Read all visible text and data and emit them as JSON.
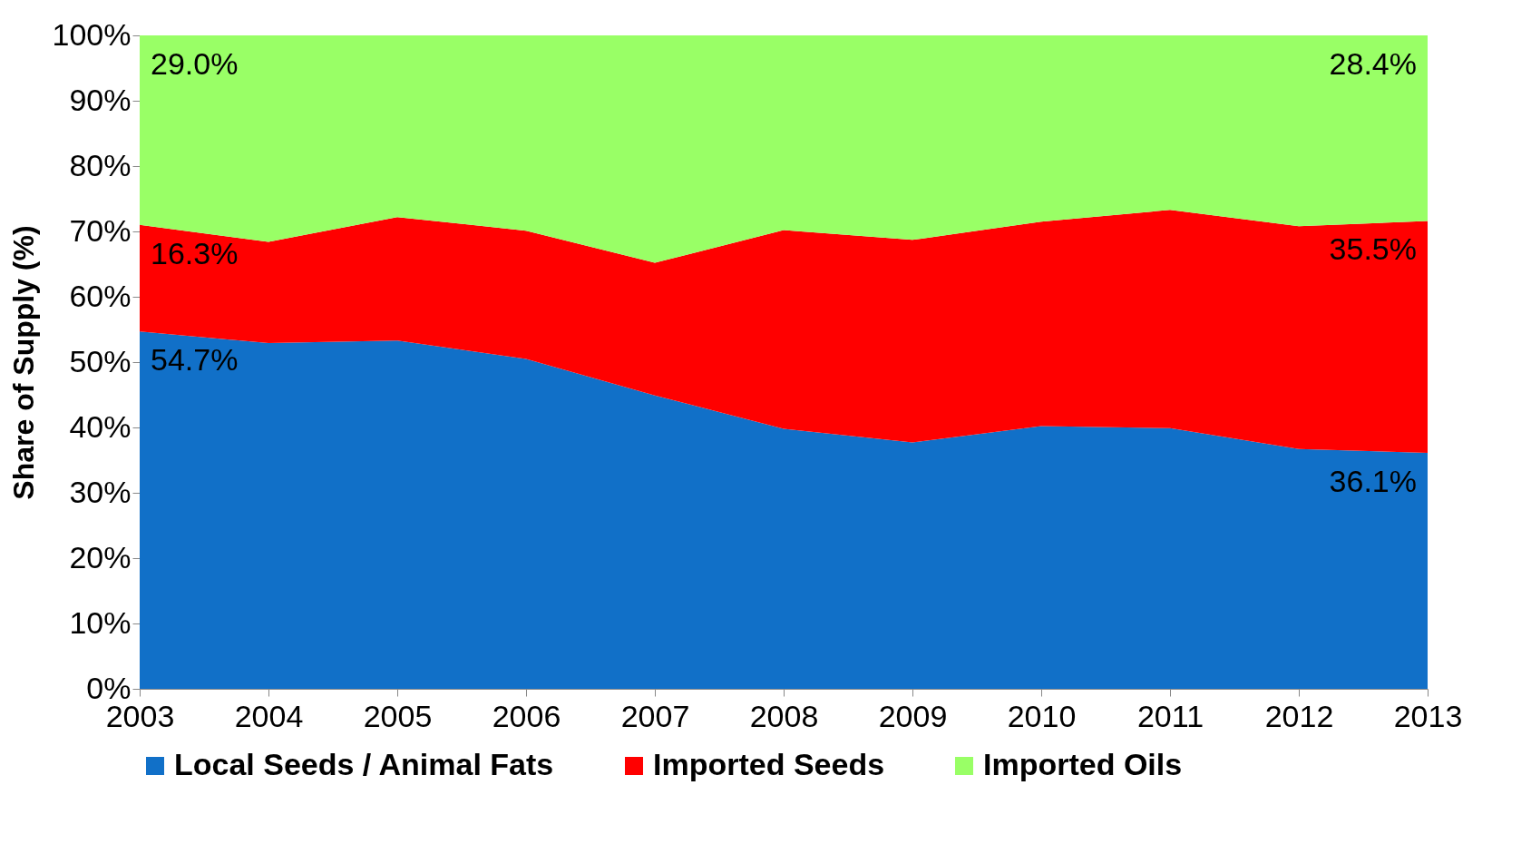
{
  "chart_data": {
    "type": "area",
    "stacked": true,
    "ylabel": "Share of Supply (%)",
    "x": [
      2003,
      2004,
      2005,
      2006,
      2007,
      2008,
      2009,
      2010,
      2011,
      2012,
      2013
    ],
    "xlim": [
      2003,
      2013
    ],
    "xticks": [
      2003,
      2004,
      2005,
      2006,
      2007,
      2008,
      2009,
      2010,
      2011,
      2012,
      2013
    ],
    "ylim": [
      0,
      100
    ],
    "yticks": [
      {
        "value": 0,
        "label": "0%"
      },
      {
        "value": 10,
        "label": "10%"
      },
      {
        "value": 20,
        "label": "20%"
      },
      {
        "value": 30,
        "label": "30%"
      },
      {
        "value": 40,
        "label": "40%"
      },
      {
        "value": 50,
        "label": "50%"
      },
      {
        "value": 60,
        "label": "60%"
      },
      {
        "value": 70,
        "label": "70%"
      },
      {
        "value": 80,
        "label": "80%"
      },
      {
        "value": 90,
        "label": "90%"
      },
      {
        "value": 100,
        "label": "100%"
      }
    ],
    "legend": "bottom",
    "grid": false,
    "series": [
      {
        "name": "Local Seeds / Animal Fats",
        "color": "#1170c8",
        "values": [
          54.7,
          52.9,
          53.3,
          50.5,
          44.9,
          39.8,
          37.7,
          40.2,
          39.9,
          36.7,
          36.1
        ],
        "value_labels": [
          "54.7%",
          null,
          null,
          null,
          null,
          null,
          null,
          null,
          null,
          null,
          "36.1%"
        ]
      },
      {
        "name": "Imported Seeds",
        "color": "#ff0000",
        "values": [
          16.3,
          15.5,
          18.9,
          19.6,
          20.3,
          30.4,
          31.0,
          31.3,
          33.4,
          34.1,
          35.5
        ],
        "value_labels": [
          "16.3%",
          null,
          null,
          null,
          null,
          null,
          null,
          null,
          null,
          null,
          "35.5%"
        ]
      },
      {
        "name": "Imported Oils",
        "color": "#99ff66",
        "values": [
          29.0,
          31.6,
          27.8,
          29.9,
          34.8,
          29.8,
          31.3,
          28.5,
          26.7,
          29.2,
          28.4
        ],
        "value_labels": [
          "29.0%",
          null,
          null,
          null,
          null,
          null,
          null,
          null,
          null,
          null,
          "28.4%"
        ]
      }
    ]
  }
}
